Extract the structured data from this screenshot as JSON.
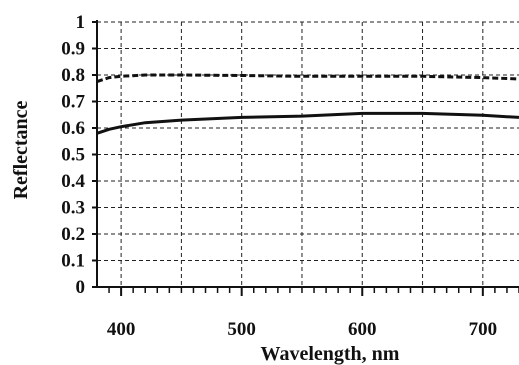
{
  "chart_data": {
    "type": "line",
    "xlabel": "Wavelength, nm",
    "ylabel": "Reflectance",
    "xlim": [
      380,
      730
    ],
    "ylim": [
      0,
      1
    ],
    "x_ticks": [
      "400",
      "500",
      "600",
      "700"
    ],
    "y_ticks": [
      "0",
      "0.1",
      "0.2",
      "0.3",
      "0.4",
      "0.5",
      "0.6",
      "0.7",
      "0.8",
      "0.9",
      "1"
    ],
    "grid": true,
    "legend": "none",
    "series": [
      {
        "style": "dashed",
        "color": "#111111",
        "x": [
          380,
          390,
          400,
          420,
          450,
          500,
          550,
          600,
          650,
          700,
          730
        ],
        "y": [
          0.775,
          0.79,
          0.795,
          0.8,
          0.8,
          0.798,
          0.795,
          0.795,
          0.795,
          0.79,
          0.785
        ]
      },
      {
        "style": "solid",
        "color": "#111111",
        "x": [
          380,
          390,
          400,
          420,
          450,
          500,
          550,
          600,
          650,
          700,
          730
        ],
        "y": [
          0.58,
          0.595,
          0.605,
          0.62,
          0.63,
          0.64,
          0.645,
          0.655,
          0.655,
          0.648,
          0.64
        ]
      }
    ]
  }
}
